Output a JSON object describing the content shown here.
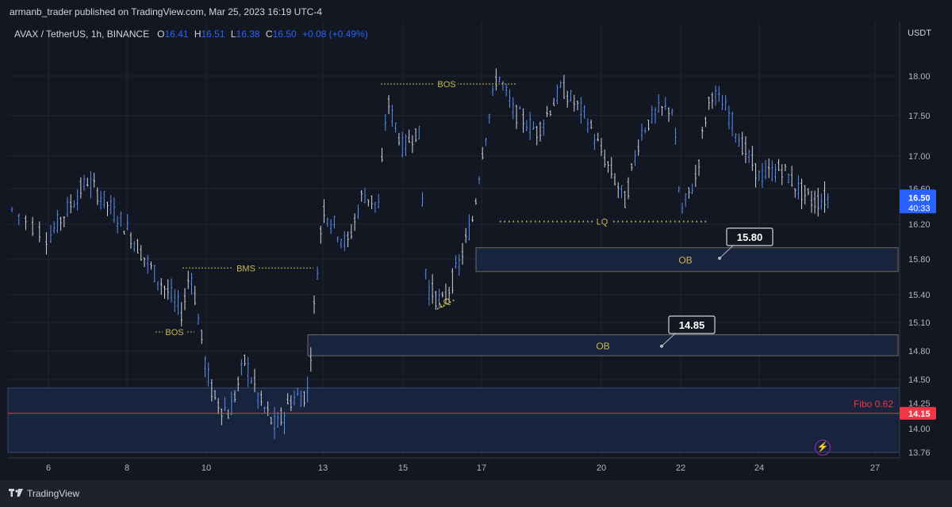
{
  "header": {
    "publisher": "armanb_trader published on TradingView.com, Mar 25, 2023 16:19 UTC-4"
  },
  "legend": {
    "symbol": "AVAX / TetherUS, 1h, BINANCE",
    "o_label": "O",
    "o": "16.41",
    "h_label": "H",
    "h": "16.51",
    "l_label": "L",
    "l": "16.38",
    "c_label": "C",
    "c": "16.50",
    "change": "+0.08 (+0.49%)"
  },
  "axis": {
    "unit": "USDT",
    "current_price": "16.50",
    "countdown": "40:33",
    "fibo_price": "14.15"
  },
  "annotations": {
    "bos1": "BOS",
    "bms": "BMS",
    "bos2": "BOS",
    "lq1": "LQ",
    "lq2": "LQ",
    "ob1": "OB",
    "ob2": "OB",
    "callout1": "15.80",
    "callout2": "14.85",
    "fibo": "Fibo 0.62"
  },
  "footer": {
    "brand": "TradingView"
  },
  "colors": {
    "background": "#131722",
    "candle": "#2962ff",
    "accent_yellow": "#c9b84d",
    "fibo": "#f23645",
    "zone": "#1e2a4a"
  },
  "chart_data": {
    "type": "line",
    "title": "AVAX / TetherUS, 1h, BINANCE",
    "xlabel": "",
    "ylabel": "USDT",
    "x_ticks": [
      "6",
      "8",
      "10",
      "13",
      "15",
      "17",
      "20",
      "22",
      "24",
      "27"
    ],
    "y_ticks": [
      "18.00",
      "17.50",
      "17.00",
      "16.60",
      "16.20",
      "15.80",
      "15.40",
      "15.10",
      "14.80",
      "14.50",
      "14.25",
      "14.00",
      "13.76"
    ],
    "ylim": [
      13.76,
      18.2
    ],
    "x": [
      "5.5",
      "6",
      "7",
      "8",
      "8.6",
      "9.4",
      "9.6",
      "10",
      "10.2",
      "10.6",
      "11",
      "11.4",
      "11.8",
      "12.2",
      "12.6",
      "13",
      "13.6",
      "14",
      "14.4",
      "14.6",
      "15",
      "15.4",
      "15.6",
      "16",
      "16.4",
      "16.8",
      "17",
      "17.4",
      "17.8",
      "18.4",
      "19",
      "19.6",
      "20",
      "20.6",
      "21",
      "21.4",
      "21.8",
      "22",
      "22.4",
      "22.6",
      "22.8",
      "23.2",
      "23.6",
      "24",
      "24.6",
      "25",
      "25.4",
      "25.8"
    ],
    "series": [
      {
        "values": [
          16.4,
          16.05,
          16.7,
          16.15,
          15.7,
          15.2,
          15.7,
          14.6,
          14.3,
          14.15,
          14.7,
          14.25,
          14.0,
          14.3,
          14.35,
          16.4,
          15.95,
          16.55,
          16.4,
          17.7,
          17.1,
          17.35,
          15.5,
          15.3,
          15.7,
          16.3,
          17.0,
          18.05,
          17.55,
          17.3,
          17.85,
          17.5,
          17.05,
          16.45,
          17.3,
          17.55,
          17.6,
          16.3,
          16.75,
          17.4,
          17.8,
          17.55,
          17.1,
          16.75,
          16.85,
          16.6,
          16.45,
          16.5
        ]
      }
    ],
    "levels": [
      {
        "label": "BOS",
        "value": 17.9
      },
      {
        "label": "BMS",
        "value": 15.7
      },
      {
        "label": "BOS",
        "value": 15.0
      },
      {
        "label": "LQ",
        "value": 16.23
      },
      {
        "label": "Fibo 0.62",
        "value": 14.15
      }
    ],
    "zones": [
      {
        "label": "OB",
        "from": 15.66,
        "to": 15.93
      },
      {
        "label": "OB",
        "from": 14.75,
        "to": 14.97
      },
      {
        "label": "",
        "from": 13.76,
        "to": 14.41
      }
    ],
    "grid": true
  }
}
